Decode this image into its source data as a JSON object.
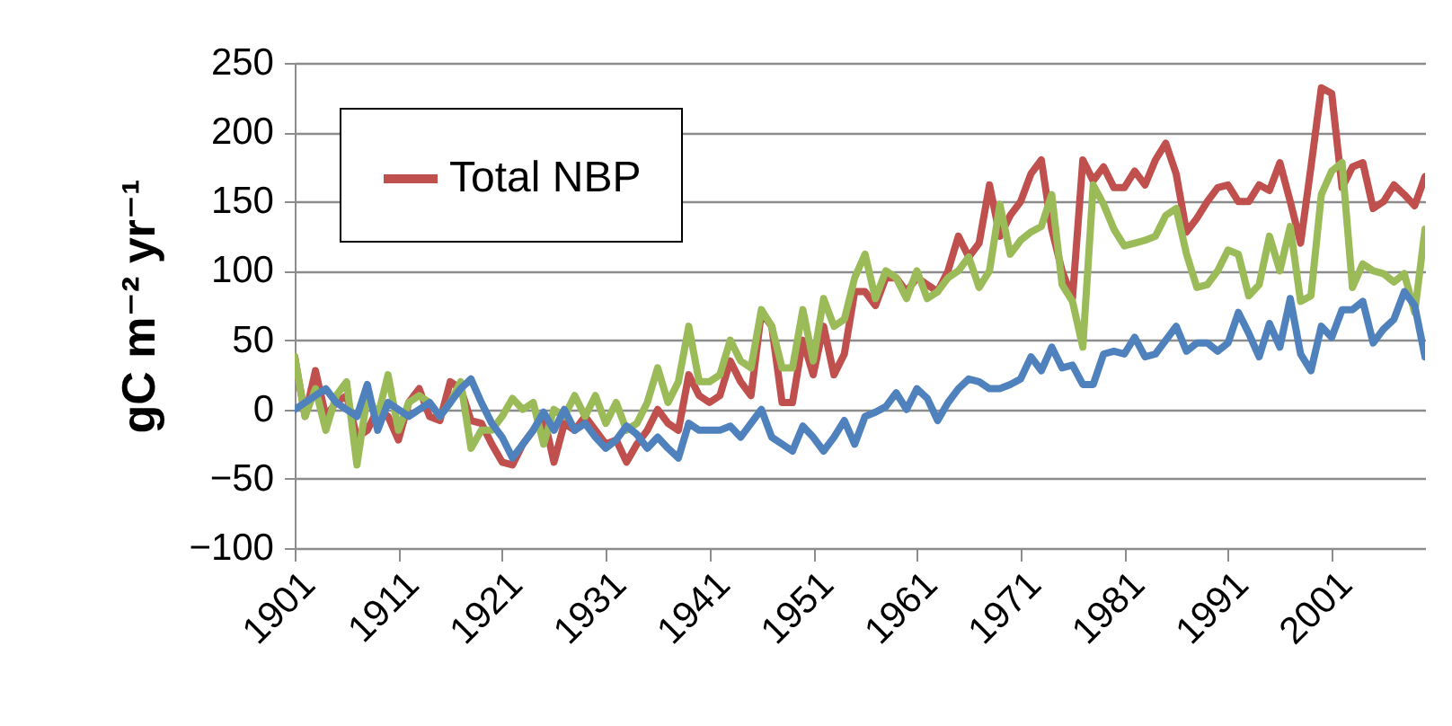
{
  "chart_data": {
    "type": "line",
    "ylabel": "gC m⁻² yr⁻¹",
    "x": [
      1901,
      1902,
      1903,
      1904,
      1905,
      1906,
      1907,
      1908,
      1909,
      1910,
      1911,
      1912,
      1913,
      1914,
      1915,
      1916,
      1917,
      1918,
      1919,
      1920,
      1921,
      1922,
      1923,
      1924,
      1925,
      1926,
      1927,
      1928,
      1929,
      1930,
      1931,
      1932,
      1933,
      1934,
      1935,
      1936,
      1937,
      1938,
      1939,
      1940,
      1941,
      1942,
      1943,
      1944,
      1945,
      1946,
      1947,
      1948,
      1949,
      1950,
      1951,
      1952,
      1953,
      1954,
      1955,
      1956,
      1957,
      1958,
      1959,
      1960,
      1961,
      1962,
      1963,
      1964,
      1965,
      1966,
      1967,
      1968,
      1969,
      1970,
      1971,
      1972,
      1973,
      1974,
      1975,
      1976,
      1977,
      1978,
      1979,
      1980,
      1981,
      1982,
      1983,
      1984,
      1985,
      1986,
      1987,
      1988,
      1989,
      1990,
      1991,
      1992,
      1993,
      1994,
      1995,
      1996,
      1997,
      1998,
      1999,
      2000,
      2001,
      2002,
      2003,
      2004,
      2005,
      2006,
      2007,
      2008,
      2009,
      2010
    ],
    "series": [
      {
        "name": "Total NBP",
        "color": "#c0504d",
        "values": [
          38,
          -5,
          28,
          -5,
          5,
          10,
          -20,
          -15,
          0,
          -5,
          -22,
          5,
          15,
          -5,
          -8,
          20,
          15,
          -8,
          -10,
          -25,
          -38,
          -40,
          -25,
          -15,
          -5,
          -38,
          -10,
          -15,
          -5,
          -15,
          -25,
          -22,
          -38,
          -25,
          -15,
          0,
          -10,
          -15,
          25,
          10,
          5,
          10,
          35,
          20,
          10,
          70,
          60,
          5,
          5,
          50,
          25,
          60,
          25,
          40,
          85,
          85,
          75,
          95,
          95,
          85,
          95,
          90,
          85,
          100,
          125,
          110,
          120,
          162,
          125,
          140,
          150,
          170,
          180,
          130,
          100,
          80,
          180,
          165,
          175,
          160,
          160,
          172,
          162,
          180,
          192,
          170,
          128,
          138,
          150,
          160,
          162,
          150,
          150,
          162,
          158,
          178,
          150,
          120,
          175,
          232,
          228,
          160,
          175,
          178,
          145,
          150,
          162,
          155,
          147,
          168
        ]
      },
      {
        "color": "#9bbb59",
        "values": [
          38,
          -5,
          15,
          -15,
          10,
          20,
          -40,
          10,
          -5,
          25,
          -15,
          5,
          10,
          5,
          -5,
          5,
          20,
          -28,
          -15,
          -15,
          -5,
          8,
          0,
          5,
          -25,
          0,
          -5,
          10,
          -5,
          10,
          -10,
          5,
          -15,
          -10,
          5,
          30,
          5,
          20,
          60,
          20,
          20,
          25,
          50,
          35,
          30,
          72,
          60,
          30,
          30,
          72,
          35,
          80,
          60,
          65,
          95,
          112,
          80,
          100,
          95,
          80,
          100,
          80,
          85,
          95,
          100,
          110,
          88,
          100,
          148,
          112,
          122,
          128,
          132,
          155,
          90,
          78,
          45,
          162,
          148,
          130,
          118,
          120,
          122,
          125,
          140,
          145,
          112,
          88,
          90,
          100,
          115,
          112,
          82,
          90,
          125,
          100,
          132,
          78,
          82,
          155,
          172,
          178,
          88,
          105,
          100,
          98,
          92,
          98,
          70,
          130
        ]
      },
      {
        "color": "#4f81bd",
        "values": [
          0,
          5,
          10,
          15,
          5,
          0,
          -5,
          18,
          -15,
          5,
          0,
          -5,
          0,
          5,
          -5,
          5,
          15,
          22,
          5,
          -10,
          -20,
          -35,
          -25,
          -15,
          -2,
          -15,
          0,
          -15,
          -10,
          -20,
          -28,
          -22,
          -12,
          -18,
          -28,
          -20,
          -28,
          -35,
          -10,
          -15,
          -15,
          -15,
          -12,
          -20,
          -10,
          0,
          -20,
          -25,
          -30,
          -12,
          -20,
          -30,
          -20,
          -8,
          -25,
          -5,
          -2,
          2,
          12,
          0,
          15,
          8,
          -8,
          5,
          15,
          22,
          20,
          15,
          15,
          18,
          22,
          38,
          28,
          45,
          30,
          32,
          18,
          18,
          40,
          42,
          40,
          52,
          38,
          40,
          50,
          60,
          42,
          48,
          48,
          42,
          48,
          70,
          55,
          38,
          62,
          45,
          80,
          40,
          28,
          60,
          52,
          72,
          72,
          78,
          48,
          58,
          65,
          85,
          75,
          38
        ]
      }
    ],
    "xlim": [
      1901,
      2010
    ],
    "xticks": [
      1901,
      1911,
      1921,
      1931,
      1941,
      1951,
      1961,
      1971,
      1981,
      1991,
      2001
    ],
    "ylim": [
      -100,
      250
    ],
    "yticks": [
      -100,
      -50,
      0,
      50,
      100,
      150,
      200,
      250
    ],
    "grid": "y",
    "legend": "top left",
    "marker": "none",
    "line_style": "solid"
  }
}
